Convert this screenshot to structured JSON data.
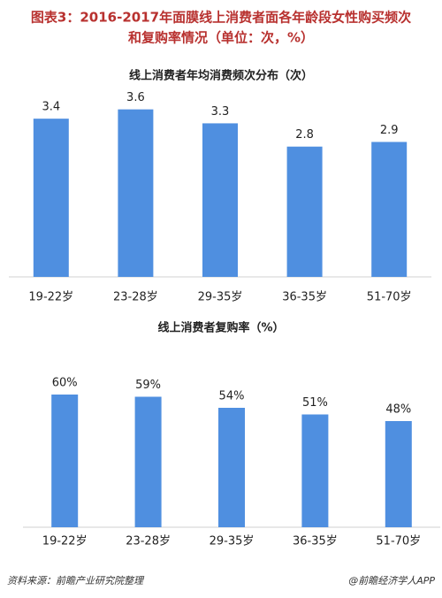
{
  "header": {
    "title": [
      "图表3：2016-2017年面膜线上消费者面各年龄段女性购买频次",
      "和复购率情况（单位：次，%）"
    ]
  },
  "chart_data": [
    {
      "type": "bar",
      "title": "线上消费者年均消费频次分布（次）",
      "categories": [
        "19-22岁",
        "23-28岁",
        "29-35岁",
        "36-35岁",
        "51-70岁"
      ],
      "values": [
        3.4,
        3.6,
        3.3,
        2.8,
        2.9
      ],
      "color": "#4f8fe0"
    },
    {
      "type": "bar",
      "title": "线上消费者复购率（%）",
      "categories": [
        "19-22岁",
        "23-28岁",
        "29-35岁",
        "36-35岁",
        "51-70岁"
      ],
      "values": [
        60,
        59,
        54,
        51,
        48
      ],
      "value_labels": [
        "60%",
        "59%",
        "54%",
        "51%",
        "48%"
      ],
      "color": "#4f8fe0"
    }
  ],
  "footer": {
    "source": "资料来源：前瞻产业研究院整理",
    "credit": "@前瞻经济学人APP"
  }
}
